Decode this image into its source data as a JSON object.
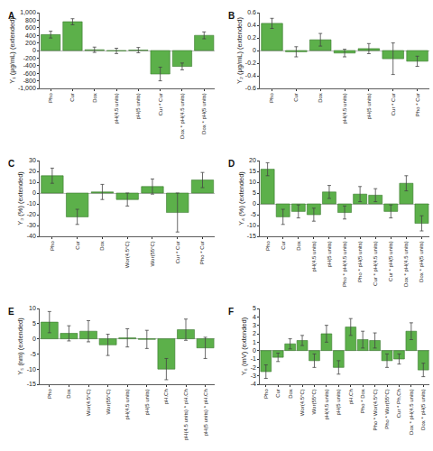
{
  "chart_data": [
    {
      "type": "bar",
      "label": "A",
      "y_label": "Y₁ (μg/mL) (extended)",
      "categories": [
        "Pho",
        "Cur",
        "Dox",
        "pH(4.5 units)",
        "pH(5 units)",
        "Cur * Cur",
        "Dox * pH(4.5 units)",
        "Dox * pH(5 units)"
      ],
      "values": [
        420,
        760,
        20,
        -10,
        10,
        -620,
        -420,
        400
      ],
      "errors": [
        90,
        80,
        70,
        70,
        70,
        180,
        90,
        90
      ],
      "color": "#5cb04a",
      "ylim": [
        -1000,
        1000
      ],
      "yticks": [
        {
          "value": -1000,
          "label": "-1,000"
        },
        -800,
        -600,
        -400,
        -200,
        0,
        200,
        400,
        600,
        800,
        {
          "value": 1000,
          "label": "1,000"
        }
      ],
      "grid": false
    },
    {
      "type": "bar",
      "label": "B",
      "y_label": "Y₂ (μg/mL) (extended)",
      "categories": [
        "Pho",
        "Cur",
        "Dox",
        "pH(4.5 units)",
        "pH(5 units)",
        "Cur * Cur",
        "Pho * Cur"
      ],
      "values": [
        0.43,
        -0.02,
        0.17,
        -0.04,
        0.03,
        -0.13,
        -0.17
      ],
      "errors": [
        0.08,
        0.08,
        0.1,
        0.06,
        0.08,
        0.25,
        0.08
      ],
      "color": "#5cb04a",
      "ylim": [
        -0.6,
        0.6
      ],
      "yticks": [
        -0.6,
        -0.4,
        -0.2,
        0,
        0.2,
        0.4,
        0.6
      ],
      "grid": false
    },
    {
      "type": "bar",
      "label": "C",
      "y_label": "Y₃ (%) (extended)",
      "categories": [
        "Pho",
        "Cur",
        "Dox",
        "Wor(4.5°C)",
        "Wor(55°C)",
        "Cur * Cur",
        "Pho * Cur"
      ],
      "values": [
        16,
        -22,
        1,
        -6,
        6,
        -18,
        12
      ],
      "errors": [
        7,
        7,
        7,
        6,
        7,
        18,
        7
      ],
      "color": "#5cb04a",
      "ylim": [
        -40,
        30
      ],
      "yticks": [
        -40,
        -30,
        -20,
        -10,
        0,
        10,
        20,
        30
      ],
      "grid": false
    },
    {
      "type": "bar",
      "label": "D",
      "y_label": "Y₄ (%) (extended)",
      "categories": [
        "Pho",
        "Cur",
        "Dox",
        "pH(4.5 units)",
        "pH(5 units)",
        "Pho * pH(4.5 units)",
        "Pho * pH(5 units)",
        "Cur * pH(4.5 units)",
        "Cur * pH(5 units)",
        "Dox * pH(4.5 units)",
        "Dox * pH(5 units)"
      ],
      "values": [
        16,
        -6,
        -3.5,
        -5,
        5.5,
        -4,
        4.5,
        4,
        -3.5,
        9.5,
        -9
      ],
      "errors": [
        3,
        3.5,
        3,
        3,
        3,
        3,
        3.5,
        3,
        3,
        3.5,
        3.5
      ],
      "color": "#5cb04a",
      "ylim": [
        -15,
        20
      ],
      "yticks": [
        -15,
        -10,
        -5,
        0,
        5,
        10,
        15,
        20
      ],
      "grid": false
    },
    {
      "type": "bar",
      "label": "E",
      "y_label": "Y₅ (nm) (extended)",
      "categories": [
        "Pho",
        "Dox",
        "Wor(4.5°C)",
        "Wor(55°C)",
        "pH(4.5 units)",
        "pH(5 units)",
        "pH.Ch",
        "pH(4.5 units) * pH.Ch",
        "pH(5 units) * pH.Ch"
      ],
      "values": [
        5.5,
        1.8,
        2.5,
        -2,
        0.3,
        -0.2,
        -10,
        3,
        -3
      ],
      "errors": [
        3.5,
        2.5,
        3.5,
        3.5,
        3,
        3,
        3.5,
        3.5,
        3.5
      ],
      "color": "#5cb04a",
      "ylim": [
        -15,
        10
      ],
      "yticks": [
        -15,
        -10,
        -5,
        0,
        5,
        10
      ],
      "grid": false
    },
    {
      "type": "bar",
      "label": "F",
      "y_label": "Y₆ (mV) (extended)",
      "categories": [
        "Pho",
        "Cur",
        "Dox",
        "Wor(4.5°C)",
        "Wor(55°C)",
        "pH(4.5 units)",
        "pH(5 units)",
        "pH.Ch",
        "Pho * Dox",
        "Pho * Wor(4.5°C)",
        "Pho * Wor(55°C)",
        "Cur * Ph.Ch",
        "Dox * pH(4.5 units)",
        "Dox * pH(5 units)"
      ],
      "values": [
        -2.5,
        -0.8,
        0.8,
        1.2,
        -1.2,
        2,
        -2,
        2.8,
        1.3,
        1.2,
        -1.2,
        -1,
        2.3,
        -2.3
      ],
      "errors": [
        0.8,
        0.5,
        0.6,
        0.6,
        0.8,
        1,
        0.8,
        1,
        1,
        0.9,
        0.8,
        0.6,
        1,
        0.8
      ],
      "color": "#5cb04a",
      "ylim": [
        -4,
        5
      ],
      "yticks": [
        -4,
        -3,
        -2,
        -1,
        0,
        1,
        2,
        3,
        4,
        5
      ],
      "grid": false
    }
  ]
}
